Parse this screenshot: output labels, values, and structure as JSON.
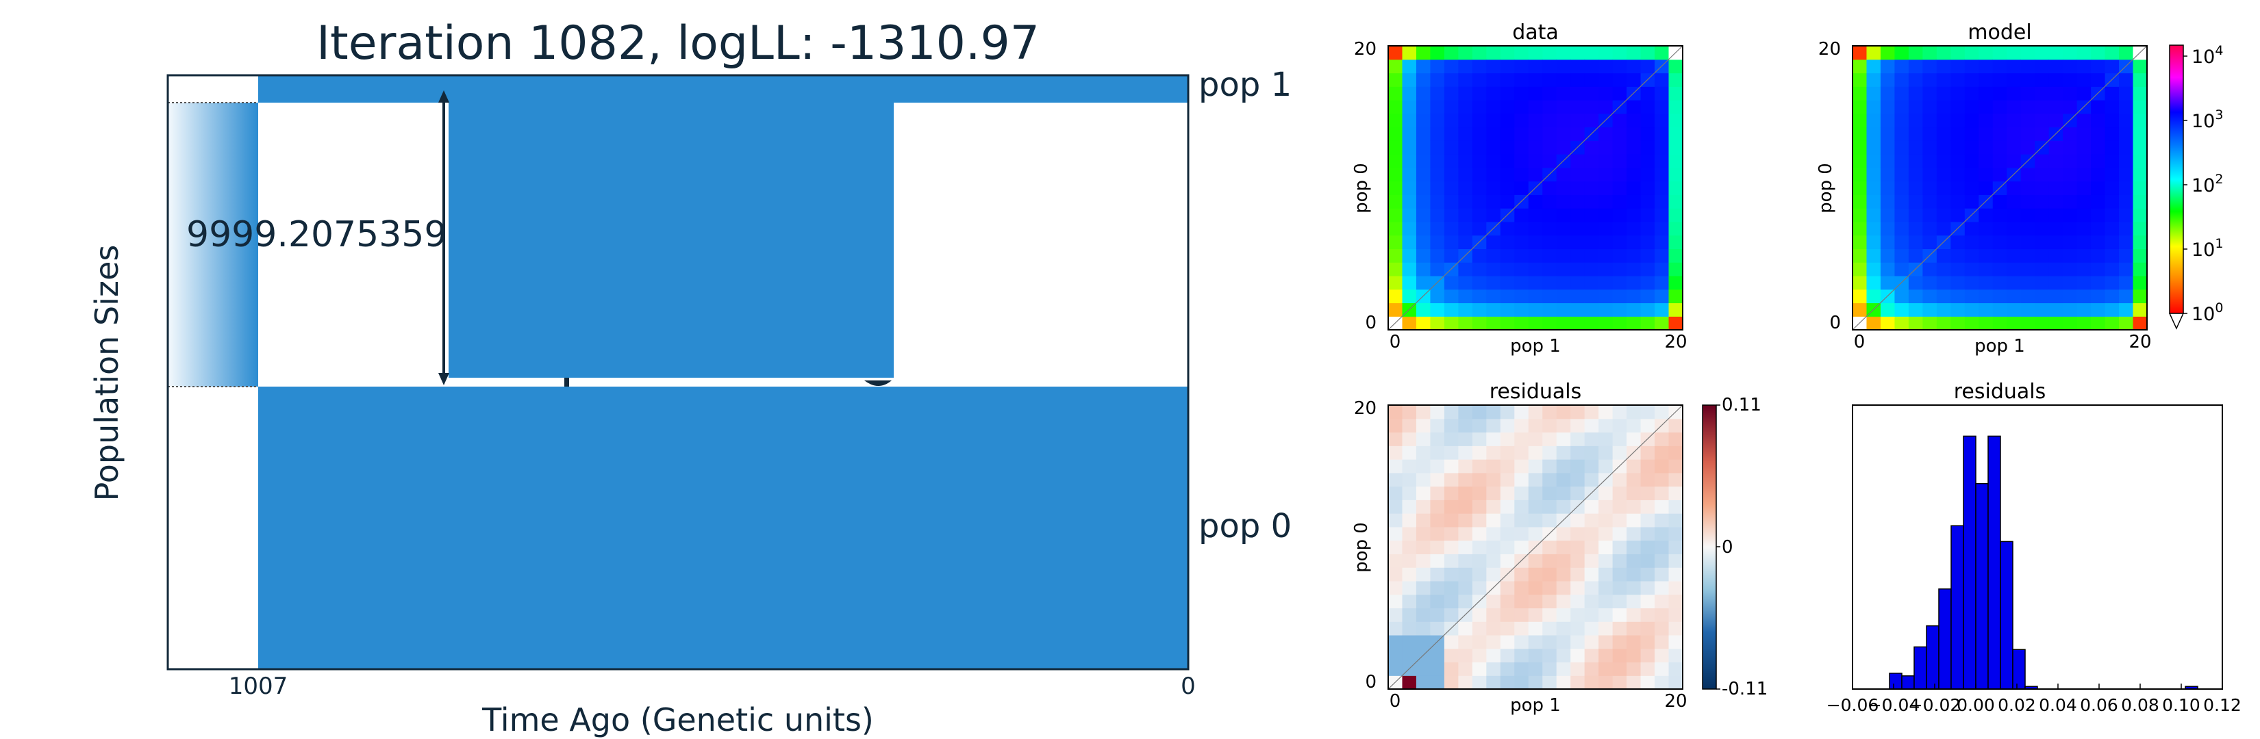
{
  "demography": {
    "title": "Iteration 1082, logLL:   -1310.97",
    "ylabel": "Population Sizes",
    "xlabel": "Time Ago (Genetic units)",
    "x_tick_labels": [
      "1007",
      "0"
    ],
    "pop_labels": [
      "pop 1",
      "pop 0"
    ],
    "size_annotation": "9999.2075359"
  },
  "colors": {
    "pop_fill": "#2a8bd1",
    "text": "#12283a",
    "hist_bar": "#0000ee"
  },
  "panels": {
    "data": {
      "title": "data",
      "xlabel": "pop 1",
      "ylabel": "pop 0",
      "ticks": [
        "0",
        "20"
      ]
    },
    "model": {
      "title": "model",
      "xlabel": "pop 1",
      "ylabel": "pop 0",
      "ticks": [
        "0",
        "20"
      ]
    },
    "resid": {
      "title": "residuals",
      "xlabel": "pop 1",
      "ylabel": "pop 0",
      "ticks": [
        "0",
        "20"
      ]
    },
    "hist": {
      "title": "residuals"
    }
  },
  "colorbars": {
    "log_ticks": [
      {
        "base": "10",
        "exp": "4"
      },
      {
        "base": "10",
        "exp": "3"
      },
      {
        "base": "10",
        "exp": "2"
      },
      {
        "base": "10",
        "exp": "1"
      },
      {
        "base": "10",
        "exp": "0"
      }
    ],
    "resid_ticks": [
      "0.11",
      "0",
      "-0.11"
    ]
  },
  "chart_data": [
    {
      "type": "heatmap",
      "title": "data",
      "xlabel": "pop 1",
      "ylabel": "pop 0",
      "xlim": [
        0,
        20
      ],
      "ylim": [
        0,
        20
      ],
      "scale": "log",
      "clim": [
        1,
        10000
      ]
    },
    {
      "type": "heatmap",
      "title": "model",
      "xlabel": "pop 1",
      "ylabel": "pop 0",
      "xlim": [
        0,
        20
      ],
      "ylim": [
        0,
        20
      ],
      "scale": "log",
      "clim": [
        1,
        10000
      ]
    },
    {
      "type": "heatmap",
      "title": "residuals",
      "xlabel": "pop 1",
      "ylabel": "pop 0",
      "xlim": [
        0,
        20
      ],
      "ylim": [
        0,
        20
      ],
      "clim": [
        -0.11,
        0.11
      ]
    },
    {
      "type": "bar",
      "title": "residuals",
      "xlim": [
        -0.06,
        0.12
      ],
      "x_ticks": [
        "−0.06",
        "−0.04",
        "−0.02",
        "0.00",
        "0.02",
        "0.04",
        "0.06",
        "0.08",
        "0.10",
        "0.12"
      ],
      "bin_width": 0.006,
      "bins": [
        {
          "x": -0.042,
          "count": 6
        },
        {
          "x": -0.036,
          "count": 5
        },
        {
          "x": -0.03,
          "count": 16
        },
        {
          "x": -0.024,
          "count": 24
        },
        {
          "x": -0.018,
          "count": 38
        },
        {
          "x": -0.012,
          "count": 62
        },
        {
          "x": -0.006,
          "count": 96
        },
        {
          "x": 0.0,
          "count": 78
        },
        {
          "x": 0.006,
          "count": 96
        },
        {
          "x": 0.012,
          "count": 56
        },
        {
          "x": 0.018,
          "count": 15
        },
        {
          "x": 0.024,
          "count": 1
        },
        {
          "x": 0.102,
          "count": 1
        }
      ]
    }
  ]
}
